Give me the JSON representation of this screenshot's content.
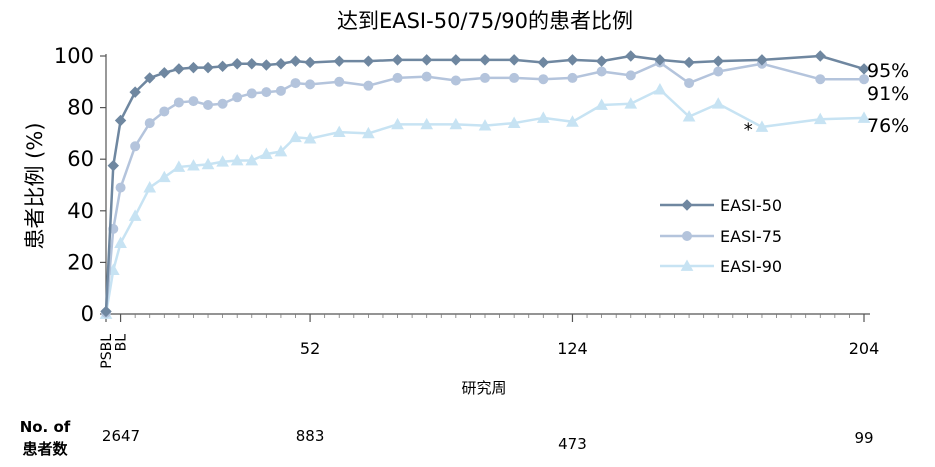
{
  "chart_data": {
    "type": "line",
    "title": "达到EASI-50/75/90的患者比例",
    "ylabel": "患者比例 (%)",
    "xlabel": "研究周",
    "ylim": [
      0,
      100
    ],
    "yticks": [
      "0",
      "20",
      "40",
      "60",
      "80",
      "100"
    ],
    "xticks": [
      {
        "label": "PSBL",
        "x": -4
      },
      {
        "label": "BL",
        "x": 0
      },
      {
        "label": "52",
        "x": 52
      },
      {
        "label": "124",
        "x": 124
      },
      {
        "label": "204",
        "x": 204
      }
    ],
    "legend_position": "middle-right",
    "series": [
      {
        "name": "EASI-50",
        "color": "#6f87a0",
        "marker": "diamond",
        "end_label": "95%",
        "x": [
          -4,
          -2,
          0,
          4,
          8,
          12,
          16,
          20,
          24,
          28,
          32,
          36,
          40,
          44,
          48,
          52,
          60,
          68,
          76,
          84,
          92,
          100,
          108,
          116,
          124,
          132,
          140,
          148,
          156,
          164,
          176,
          192,
          204
        ],
        "values": [
          1,
          57.5,
          75,
          86,
          91.5,
          93.5,
          95,
          95.5,
          95.5,
          96,
          97,
          97,
          96.5,
          97,
          98,
          97.5,
          98,
          98,
          98.5,
          98.5,
          98.5,
          98.5,
          98.5,
          97.5,
          98.5,
          98,
          100,
          98.5,
          97.5,
          98,
          98.5,
          100,
          95
        ]
      },
      {
        "name": "EASI-75",
        "color": "#b4c4dc",
        "marker": "circle",
        "end_label": "91%",
        "x": [
          -4,
          -2,
          0,
          4,
          8,
          12,
          16,
          20,
          24,
          28,
          32,
          36,
          40,
          44,
          48,
          52,
          60,
          68,
          76,
          84,
          92,
          100,
          108,
          116,
          124,
          132,
          140,
          148,
          156,
          164,
          176,
          192,
          204
        ],
        "values": [
          0.5,
          33,
          49,
          65,
          74,
          78.5,
          82,
          82.5,
          81,
          81.5,
          84,
          85.5,
          86,
          86.5,
          89.5,
          89,
          90,
          88.5,
          91.5,
          92,
          90.5,
          91.5,
          91.5,
          91,
          91.5,
          94,
          92.5,
          97.5,
          89.5,
          94,
          97,
          91,
          91
        ]
      },
      {
        "name": "EASI-90",
        "color": "#c7e3f3",
        "marker": "triangle",
        "end_label": "76%",
        "x": [
          -4,
          -2,
          0,
          4,
          8,
          12,
          16,
          20,
          24,
          28,
          32,
          36,
          40,
          44,
          48,
          52,
          60,
          68,
          76,
          84,
          92,
          100,
          108,
          116,
          124,
          132,
          140,
          148,
          156,
          164,
          176,
          192,
          204
        ],
        "values": [
          0,
          17,
          27.5,
          38,
          49,
          53,
          57,
          57.5,
          58,
          59,
          59.5,
          59.5,
          62,
          63,
          68.5,
          68,
          70.5,
          70,
          73.5,
          73.5,
          73.5,
          73,
          74,
          76,
          74.5,
          81,
          81.5,
          87,
          76.5,
          81.5,
          72.5,
          75.5,
          76
        ]
      }
    ],
    "annotations": [
      {
        "text": "*",
        "x": 164,
        "y": 70
      }
    ],
    "footer": {
      "label_line1": "No. of",
      "label_line2": "患者数",
      "counts": [
        {
          "x": 0,
          "value": "2647"
        },
        {
          "x": 52,
          "value": "883"
        },
        {
          "x": 124,
          "value": "473"
        },
        {
          "x": 204,
          "value": "99"
        }
      ]
    }
  }
}
